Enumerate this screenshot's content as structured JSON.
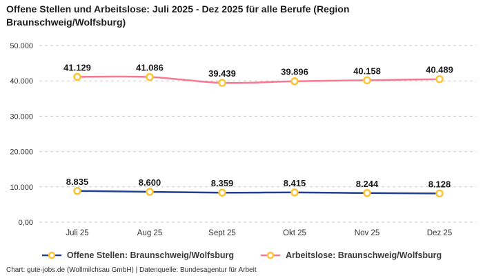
{
  "title": "Offene Stellen und Arbeitslose: Juli 2025 - Dez 2025 für alle Berufe (Region Braunschweig/Wolfsburg)",
  "footer": "Chart: gute-jobs.de (Wollmilchsau GmbH) | Datenquelle: Bundesagentur für Arbeit",
  "colors": {
    "open_positions_line": "#233d8f",
    "unemployed_line": "#f6798f",
    "marker_ring": "#fcc332",
    "marker_fill": "#ffffff",
    "gridline": "#cacaca"
  },
  "chart_data": {
    "type": "line",
    "title": "Offene Stellen und Arbeitslose: Juli 2025 - Dez 2025 für alle Berufe (Region Braunschweig/Wolfsburg)",
    "categories": [
      "Juli 25",
      "Aug 25",
      "Sept 25",
      "Okt 25",
      "Nov 25",
      "Dez 25"
    ],
    "series": [
      {
        "name": "Offene Stellen: Braunschweig/Wolfsburg",
        "color": "#233d8f",
        "values": [
          8835,
          8600,
          8359,
          8415,
          8244,
          8128
        ],
        "labels": [
          "8.835",
          "8.600",
          "8.359",
          "8.415",
          "8.244",
          "8.128"
        ]
      },
      {
        "name": "Arbeitslose: Braunschweig/Wolfsburg",
        "color": "#f6798f",
        "values": [
          41129,
          41086,
          39439,
          39896,
          40158,
          40489
        ],
        "labels": [
          "41.129",
          "41.086",
          "39.439",
          "39.896",
          "40.158",
          "40.489"
        ]
      }
    ],
    "marker": {
      "fill": "#ffffff",
      "stroke": "#fcc332"
    },
    "xlabel": "",
    "ylabel": "",
    "ylim": [
      0,
      50000
    ],
    "yticks": [
      {
        "value": 0,
        "label": "0,00"
      },
      {
        "value": 10000,
        "label": "10.000"
      },
      {
        "value": 20000,
        "label": "20.000"
      },
      {
        "value": 30000,
        "label": "30.000"
      },
      {
        "value": 40000,
        "label": "40.000"
      },
      {
        "value": 50000,
        "label": "50.000"
      }
    ],
    "grid": true,
    "legend_position": "bottom"
  },
  "legend": {
    "items": [
      {
        "label": "Offene Stellen: Braunschweig/Wolfsburg",
        "color": "#233d8f"
      },
      {
        "label": "Arbeitslose: Braunschweig/Wolfsburg",
        "color": "#f6798f"
      }
    ]
  }
}
